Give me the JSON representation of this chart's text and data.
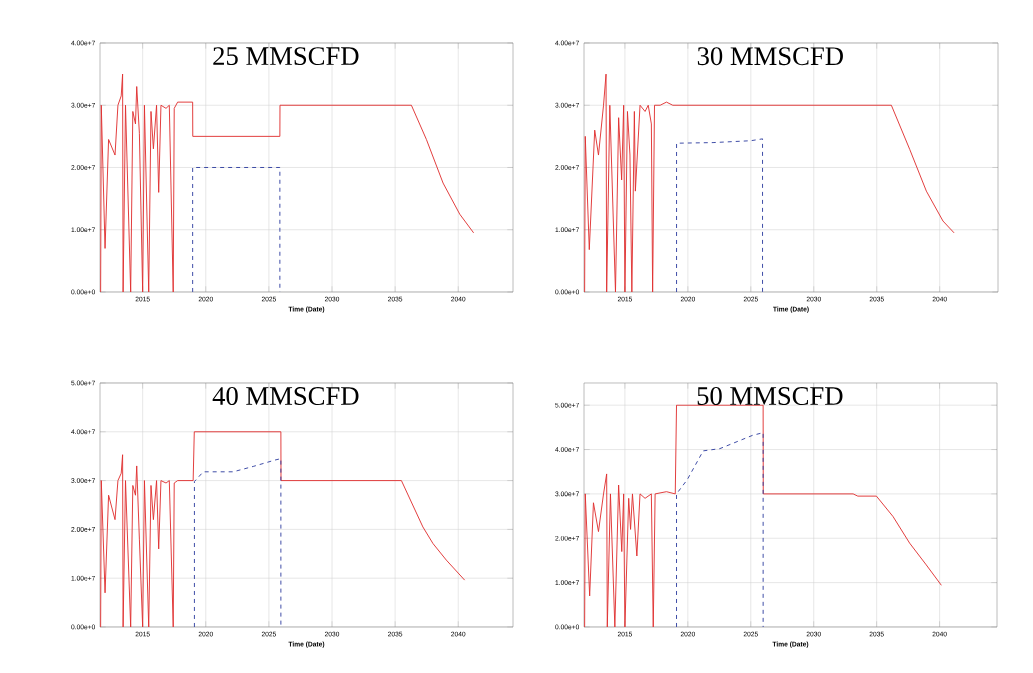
{
  "chart_data": [
    {
      "type": "line",
      "title": "25 MMSCFD",
      "xlabel": "Time (Date)",
      "grid": true,
      "xlim": [
        2011.62,
        2044.34
      ],
      "ylim": [
        0,
        40000000.0
      ],
      "xticks": [
        2015,
        2020,
        2025,
        2030,
        2035,
        2040
      ],
      "yticks": [
        {
          "value": 0,
          "label": "0.00e+0"
        },
        {
          "value": 10000000.0,
          "label": "1.00e+7"
        },
        {
          "value": 20000000.0,
          "label": "2.00e+7"
        },
        {
          "value": 30000000.0,
          "label": "3.00e+7"
        },
        {
          "value": 40000000.0,
          "label": "4.00e+7"
        }
      ],
      "series": [
        {
          "color": "#e03030",
          "line_style": "solid",
          "x": [
            2011.67,
            2011.72,
            2012.02,
            2012.3,
            2012.81,
            2013.04,
            2013.3,
            2013.41,
            2013.45,
            2013.64,
            2014.05,
            2014.22,
            2014.43,
            2014.53,
            2014.74,
            2015.0,
            2015.14,
            2015.48,
            2015.66,
            2015.85,
            2016.1,
            2016.27,
            2016.45,
            2016.85,
            2017.11,
            2017.42,
            2017.5,
            2017.77,
            2018.16,
            2018.96,
            2018.97,
            2025.87,
            2025.88,
            2036.29,
            2037.48,
            2038.8,
            2040.12,
            2041.22
          ],
          "values": [
            0,
            30000000.0,
            7000000.0,
            24500000.0,
            22000000.0,
            30000000.0,
            31500000.0,
            35000000.0,
            0,
            30000000.0,
            0,
            29000000.0,
            27000000.0,
            33000000.0,
            25500000.0,
            0,
            30000000.0,
            0,
            29000000.0,
            23000000.0,
            30000000.0,
            16000000.0,
            30000000.0,
            29500000.0,
            30000000.0,
            0,
            29500000.0,
            30500000.0,
            30500000.0,
            30500000.0,
            25000000.0,
            25000000.0,
            30000000.0,
            30000000.0,
            24500000.0,
            17500000.0,
            12500000.0,
            9500000.0
          ]
        },
        {
          "color": "#3040a0",
          "line_style": "dashed",
          "x": [
            2018.96,
            2018.96,
            2025.87,
            2025.87
          ],
          "values": [
            0,
            20000000.0,
            20000000.0,
            0
          ]
        }
      ]
    },
    {
      "type": "line",
      "title": "30 MMSCFD",
      "xlabel": "Time (Date)",
      "grid": true,
      "xlim": [
        2011.75,
        2044.63
      ],
      "ylim": [
        0,
        40000000.0
      ],
      "xticks": [
        2015,
        2020,
        2025,
        2030,
        2035,
        2040
      ],
      "yticks": [
        {
          "value": 0,
          "label": "0.00e+0"
        },
        {
          "value": 10000000.0,
          "label": "1.00e+7"
        },
        {
          "value": 20000000.0,
          "label": "2.00e+7"
        },
        {
          "value": 30000000.0,
          "label": "3.00e+7"
        },
        {
          "value": 40000000.0,
          "label": "4.00e+7"
        }
      ],
      "series": [
        {
          "color": "#e03030",
          "line_style": "solid",
          "x": [
            2011.8,
            2011.85,
            2012.17,
            2012.6,
            2012.9,
            2013.3,
            2013.5,
            2013.55,
            2013.8,
            2014.25,
            2014.5,
            2014.74,
            2014.9,
            2015.0,
            2015.2,
            2015.4,
            2015.55,
            2015.75,
            2015.83,
            2016.2,
            2016.6,
            2016.85,
            2017.1,
            2017.2,
            2017.35,
            2017.8,
            2018.3,
            2018.8,
            2036.16,
            2037.62,
            2038.94,
            2040.26,
            2041.14
          ],
          "values": [
            0,
            25000000.0,
            6800000.0,
            26000000.0,
            22000000.0,
            30000000.0,
            35000000.0,
            0,
            30000000.0,
            0,
            28000000.0,
            18000000.0,
            30000000.0,
            0,
            29000000.0,
            22000000.0,
            0,
            29000000.0,
            16200000.0,
            30000000.0,
            29000000.0,
            30000000.0,
            27000000.0,
            0,
            30000000.0,
            30000000.0,
            30500000.0,
            30000000.0,
            30000000.0,
            22900000.0,
            16200000.0,
            11400000.0,
            9500000.0
          ]
        },
        {
          "color": "#3040a0",
          "line_style": "dashed",
          "x": [
            2019.1,
            2019.1,
            2022.0,
            2025.0,
            2025.93,
            2025.93
          ],
          "values": [
            0,
            23900000.0,
            24000000.0,
            24300000.0,
            24600000.0,
            0
          ]
        }
      ]
    },
    {
      "type": "line",
      "title": "40 MMSCFD",
      "xlabel": "Time (Date)",
      "grid": true,
      "xlim": [
        2011.62,
        2044.34
      ],
      "ylim": [
        0,
        50000000.0
      ],
      "xticks": [
        2015,
        2020,
        2025,
        2030,
        2035,
        2040
      ],
      "yticks": [
        {
          "value": 0,
          "label": "0.00e+0"
        },
        {
          "value": 10000000.0,
          "label": "1.00e+7"
        },
        {
          "value": 20000000.0,
          "label": "2.00e+7"
        },
        {
          "value": 30000000.0,
          "label": "3.00e+7"
        },
        {
          "value": 40000000.0,
          "label": "4.00e+7"
        },
        {
          "value": 50000000.0,
          "label": "5.00e+7"
        }
      ],
      "series": [
        {
          "color": "#e03030",
          "line_style": "solid",
          "x": [
            2011.67,
            2011.72,
            2012.02,
            2012.3,
            2012.81,
            2013.04,
            2013.3,
            2013.41,
            2013.45,
            2013.64,
            2014.05,
            2014.22,
            2014.43,
            2014.53,
            2014.74,
            2015.0,
            2015.14,
            2015.48,
            2015.66,
            2015.85,
            2016.1,
            2016.27,
            2016.45,
            2016.85,
            2017.11,
            2017.42,
            2017.5,
            2017.77,
            2018.16,
            2019.0,
            2019.09,
            2025.95,
            2025.96,
            2035.5,
            2037.2,
            2038.0,
            2039.06,
            2040.51
          ],
          "values": [
            0,
            30000000.0,
            7000000.0,
            27000000.0,
            22000000.0,
            30000000.0,
            31500000.0,
            35300000.0,
            0,
            30000000.0,
            0,
            29000000.0,
            27000000.0,
            33000000.0,
            18000000.0,
            0,
            30000000.0,
            0,
            29000000.0,
            22000000.0,
            30000000.0,
            16000000.0,
            30000000.0,
            29500000.0,
            30000000.0,
            0,
            29500000.0,
            30000000.0,
            30000000.0,
            30000000.0,
            40000000.0,
            40000000.0,
            30000000.0,
            30000000.0,
            20500000.0,
            17100000.0,
            13700000.0,
            9600000.0
          ]
        },
        {
          "color": "#3040a0",
          "line_style": "dashed",
          "x": [
            2019.1,
            2019.1,
            2019.8,
            2022.17,
            2023.76,
            2025.47,
            2025.95,
            2025.95
          ],
          "values": [
            0,
            29800000.0,
            31800000.0,
            31800000.0,
            32900000.0,
            34200000.0,
            34500000.0,
            0
          ]
        }
      ]
    },
    {
      "type": "line",
      "title": "50 MMSCFD",
      "xlabel": "Time (Date)",
      "grid": true,
      "xlim": [
        2011.75,
        2044.56
      ],
      "ylim": [
        0,
        55000000.0
      ],
      "xticks": [
        2015,
        2020,
        2025,
        2030,
        2035,
        2040
      ],
      "yticks": [
        {
          "value": 0,
          "label": "0.00e+0"
        },
        {
          "value": 10000000.0,
          "label": "1.00e+7"
        },
        {
          "value": 20000000.0,
          "label": "2.00e+7"
        },
        {
          "value": 30000000.0,
          "label": "3.00e+7"
        },
        {
          "value": 40000000.0,
          "label": "4.00e+7"
        },
        {
          "value": 50000000.0,
          "label": "5.00e+7"
        }
      ],
      "series": [
        {
          "color": "#e03030",
          "line_style": "solid",
          "x": [
            2011.8,
            2011.85,
            2012.2,
            2012.5,
            2012.9,
            2013.3,
            2013.55,
            2013.6,
            2013.85,
            2014.2,
            2014.5,
            2014.75,
            2014.9,
            2015.0,
            2015.3,
            2015.45,
            2015.6,
            2015.95,
            2016.2,
            2016.6,
            2017.1,
            2017.25,
            2017.4,
            2018.3,
            2019.0,
            2019.1,
            2025.98,
            2025.99,
            2033.13,
            2033.5,
            2034.98,
            2036.3,
            2037.62,
            2038.94,
            2040.14
          ],
          "values": [
            0,
            30000000.0,
            7000000.0,
            28000000.0,
            21500000.0,
            30000000.0,
            34500000.0,
            0,
            30000000.0,
            0,
            32000000.0,
            17000000.0,
            30000000.0,
            0,
            29000000.0,
            22000000.0,
            30000000.0,
            16000000.0,
            30000000.0,
            29000000.0,
            30000000.0,
            0,
            30000000.0,
            30500000.0,
            30000000.0,
            50000000.0,
            50000000.0,
            30000000.0,
            30000000.0,
            29500000.0,
            29500000.0,
            24900000.0,
            18900000.0,
            14000000.0,
            9400000.0
          ]
        },
        {
          "color": "#3040a0",
          "line_style": "dashed",
          "x": [
            2019.1,
            2019.1,
            2019.95,
            2021.22,
            2022.54,
            2025.14,
            2025.98,
            2025.98
          ],
          "values": [
            0,
            30000000.0,
            33200000.0,
            39700000.0,
            40200000.0,
            43200000.0,
            43800000.0,
            0
          ]
        }
      ]
    }
  ]
}
